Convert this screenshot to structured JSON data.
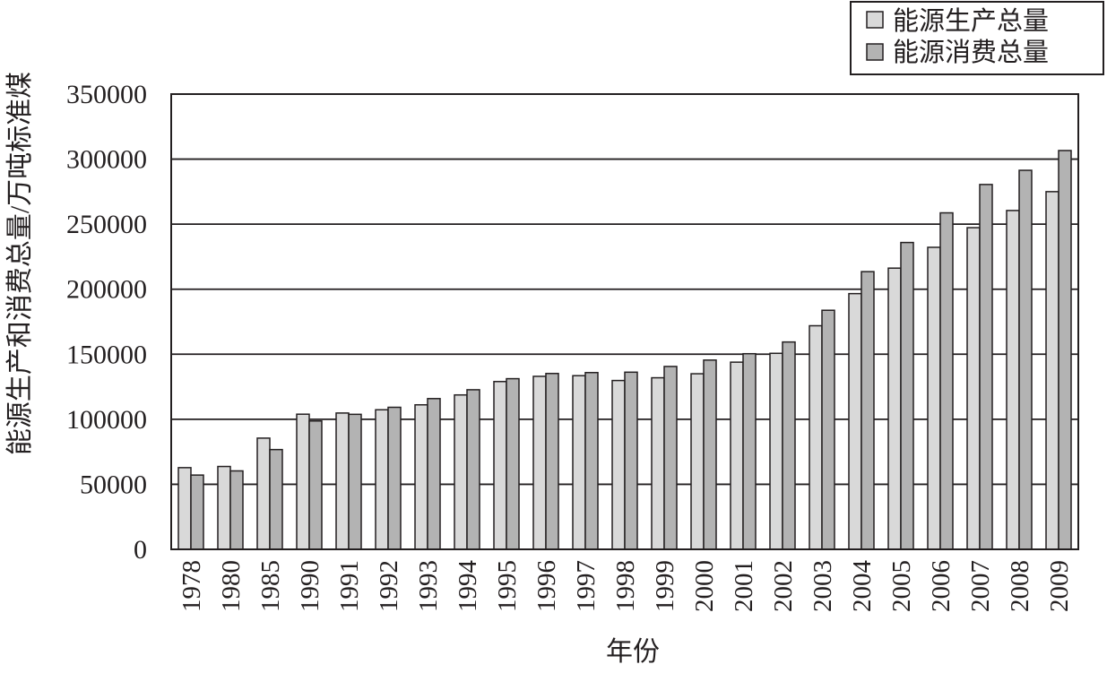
{
  "chart_data": {
    "type": "bar",
    "xlabel": "年份",
    "ylabel": "能源生产和消费总量/万吨标准煤",
    "ylim": [
      0,
      350000
    ],
    "yticks": [
      "0",
      "50000",
      "100000",
      "150000",
      "200000",
      "250000",
      "300000",
      "350000"
    ],
    "grid": true,
    "legend_position": "top-right",
    "categories": [
      "1978",
      "1980",
      "1985",
      "1990",
      "1991",
      "1992",
      "1993",
      "1994",
      "1995",
      "1996",
      "1997",
      "1998",
      "1999",
      "2000",
      "2001",
      "2002",
      "2003",
      "2004",
      "2005",
      "2006",
      "2007",
      "2008",
      "2009"
    ],
    "series": [
      {
        "name": "能源生产总量",
        "color": "#d9d9d9",
        "values": [
          62800,
          63700,
          85500,
          103900,
          104800,
          107300,
          111100,
          118700,
          129000,
          133000,
          133500,
          129800,
          131900,
          135000,
          143900,
          150700,
          171900,
          196600,
          216200,
          232200,
          247300,
          260500,
          275000
        ]
      },
      {
        "name": "能源消费总量",
        "color": "#b3b3b3",
        "values": [
          57100,
          60300,
          76700,
          98700,
          103800,
          109200,
          115900,
          122700,
          131200,
          135200,
          135900,
          136200,
          140600,
          145500,
          150400,
          159400,
          183800,
          213500,
          235900,
          258700,
          280500,
          291400,
          306600
        ]
      }
    ]
  }
}
